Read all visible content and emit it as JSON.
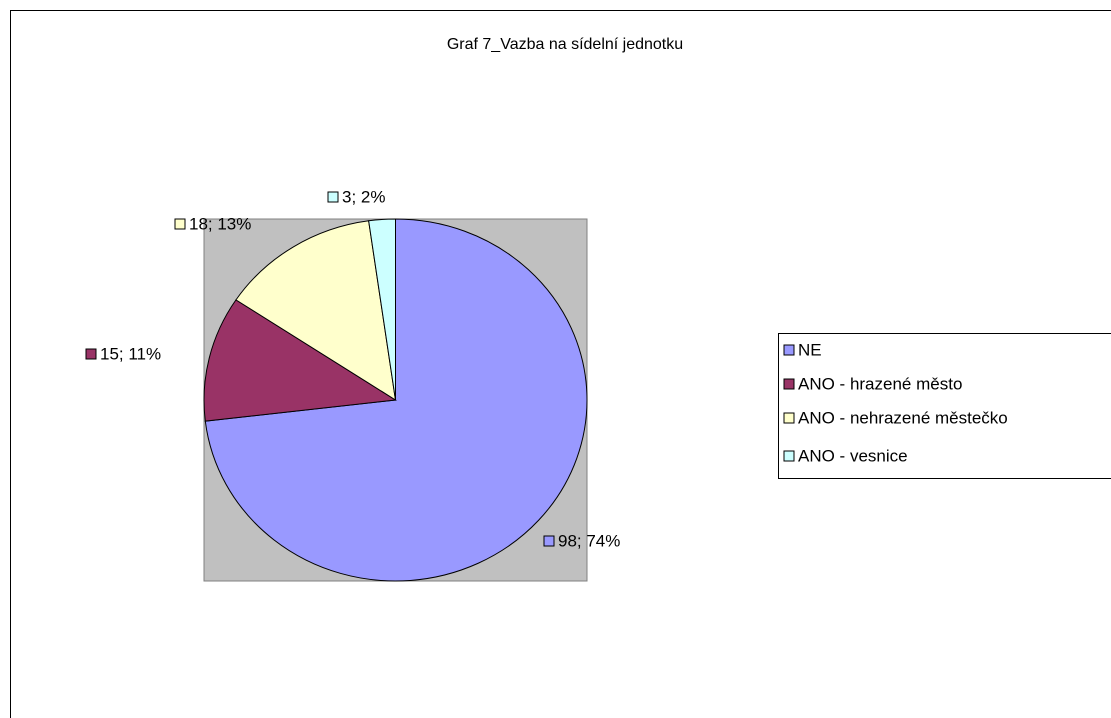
{
  "chart_data": {
    "type": "pie",
    "title": "Graf 7_Vazba na sídelní jednotku",
    "categories": [
      "NE",
      "ANO - hrazené město",
      "ANO - nehrazené městečko",
      "ANO - vesnice"
    ],
    "values": [
      98,
      15,
      18,
      3
    ],
    "value_labels": [
      "98; 74%",
      "15; 11%",
      "18; 13%",
      "3; 2%"
    ],
    "colors": [
      "#9999ff",
      "#993366",
      "#ffffcc",
      "#ccffff"
    ]
  }
}
